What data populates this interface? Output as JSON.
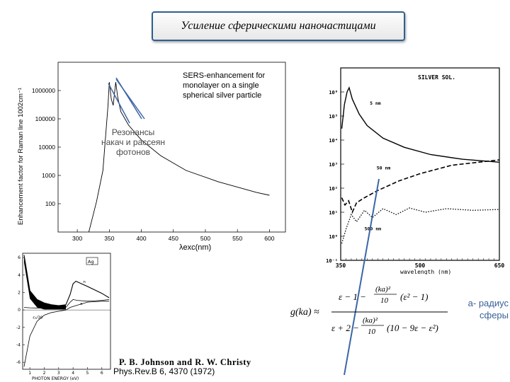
{
  "slide": {
    "title": "Усиление сферическими наночастицами",
    "annotation_resonances": [
      "Резонансы",
      "накач и рассеян",
      "фотонов"
    ],
    "radius_note": [
      "а- радиус",
      "сферы"
    ],
    "authors": "P. B. Johnson and R. W. Christy",
    "reference": "Phys.Rev.B 6, 4370 (1972)",
    "colors": {
      "title_border": "#2f5f8f",
      "arrow": "#3b66a8",
      "radius_note": "#3a5f9a"
    }
  },
  "formula": {
    "lhs": "g(ka) ≈",
    "num_a": "ε − 1 −",
    "num_frac_top": "(ka)²",
    "num_frac_bot": "10",
    "num_b": "(ε² − 1)",
    "den_a": "ε + 2 −",
    "den_frac_top": "(ka)²",
    "den_frac_bot": "10",
    "den_b": "(10 − 9ε − ε²)"
  },
  "chart_data": [
    {
      "type": "line",
      "title": "SERS-enhancement for monolayer on a single spherical silver particle",
      "xlabel": "λexc(nm)",
      "ylabel": "Enhancement factor for Raman line 1002cm⁻¹",
      "x_ticks": [
        300,
        350,
        400,
        450,
        500,
        550,
        600
      ],
      "y_ticks": [
        "100",
        "1000",
        "10000",
        "100000",
        "1000000"
      ],
      "ylog": true,
      "xlim": [
        270,
        625
      ],
      "ylim": [
        10,
        10000000
      ],
      "series": [
        {
          "x": [
            318,
            330,
            340,
            348,
            350,
            353,
            356,
            360,
            363,
            368,
            380,
            400,
            430,
            470,
            520,
            580,
            600
          ],
          "y": [
            10,
            120,
            1500,
            300000,
            2000000,
            500000,
            300000,
            2000000,
            600000,
            180000,
            60000,
            18000,
            5000,
            1500,
            600,
            250,
            200
          ]
        }
      ]
    },
    {
      "type": "line",
      "legend": [
        "SILVER SOL."
      ],
      "xlabel": "wavelength (nm)",
      "x_ticks": [
        350,
        500,
        650
      ],
      "y_ticks": [
        "10⁻¹",
        "10⁰",
        "10¹",
        "10²",
        "10³",
        "10⁴",
        "10⁵",
        "10⁶"
      ],
      "ylog": true,
      "xlim": [
        350,
        650
      ],
      "ylim": [
        0.1,
        10000000
      ],
      "curve_labels": [
        "5 nm",
        "50 nm",
        "500 nm"
      ],
      "series": [
        {
          "name": "5 nm",
          "x": [
            352,
            357,
            362,
            366,
            372,
            385,
            400,
            430,
            470,
            520,
            580,
            650
          ],
          "y": [
            30000,
            300000,
            1000000,
            1500000,
            500000,
            120000,
            40000,
            12000,
            5000,
            2500,
            1600,
            1200
          ]
        },
        {
          "name": "50 nm",
          "x": [
            352,
            358,
            365,
            372,
            380,
            395,
            420,
            460,
            500,
            560,
            650
          ],
          "y": [
            40,
            20,
            30,
            10,
            25,
            40,
            80,
            200,
            400,
            900,
            1500
          ]
        },
        {
          "name": "500 nm",
          "x": [
            352,
            360,
            370,
            380,
            395,
            410,
            430,
            455,
            480,
            510,
            550,
            600,
            650
          ],
          "y": [
            0.5,
            2,
            8,
            4,
            12,
            6,
            14,
            8,
            15,
            10,
            14,
            12,
            13
          ]
        }
      ]
    },
    {
      "type": "line",
      "label_box": "Ag",
      "xlabel": "PHOTON ENERGY (eV)",
      "x_ticks": [
        1,
        2,
        3,
        4,
        5,
        6
      ],
      "y_ticks": [
        6,
        4,
        2,
        0,
        -2,
        -4,
        -6
      ],
      "xlim": [
        0.5,
        6.6
      ],
      "ylim": [
        -6.8,
        6.5
      ],
      "curve_labels": [
        "ε₂",
        "n",
        "κ",
        "ε₁/30"
      ],
      "series": [
        {
          "name": "ε₂",
          "x": [
            0.6,
            1,
            1.5,
            2,
            2.5,
            3,
            3.5,
            3.8,
            4,
            4.2,
            4.6,
            5,
            5.5,
            6,
            6.5
          ],
          "y": [
            6.3,
            2.2,
            1.2,
            0.8,
            0.6,
            0.5,
            0.6,
            1.8,
            3.0,
            3.3,
            3.0,
            2.7,
            2.3,
            1.9,
            1.4
          ]
        },
        {
          "name": "ε₁/30",
          "x": [
            0.6,
            1,
            1.5,
            2,
            2.5,
            3,
            3.5,
            3.8,
            4.2,
            5,
            6,
            6.5
          ],
          "y": [
            -6.5,
            -3.0,
            -1.3,
            -0.6,
            -0.3,
            -0.15,
            0,
            0.3,
            0.5,
            0.9,
            1.0,
            1.0
          ]
        },
        {
          "name": "n",
          "x": [
            0.6,
            1,
            2,
            3,
            3.5,
            3.8,
            4,
            4.3,
            5,
            6,
            6.5
          ],
          "y": [
            0.3,
            0.25,
            0.2,
            0.2,
            0.3,
            0.9,
            1.2,
            1.1,
            1.0,
            1.1,
            1.2
          ]
        }
      ]
    }
  ]
}
